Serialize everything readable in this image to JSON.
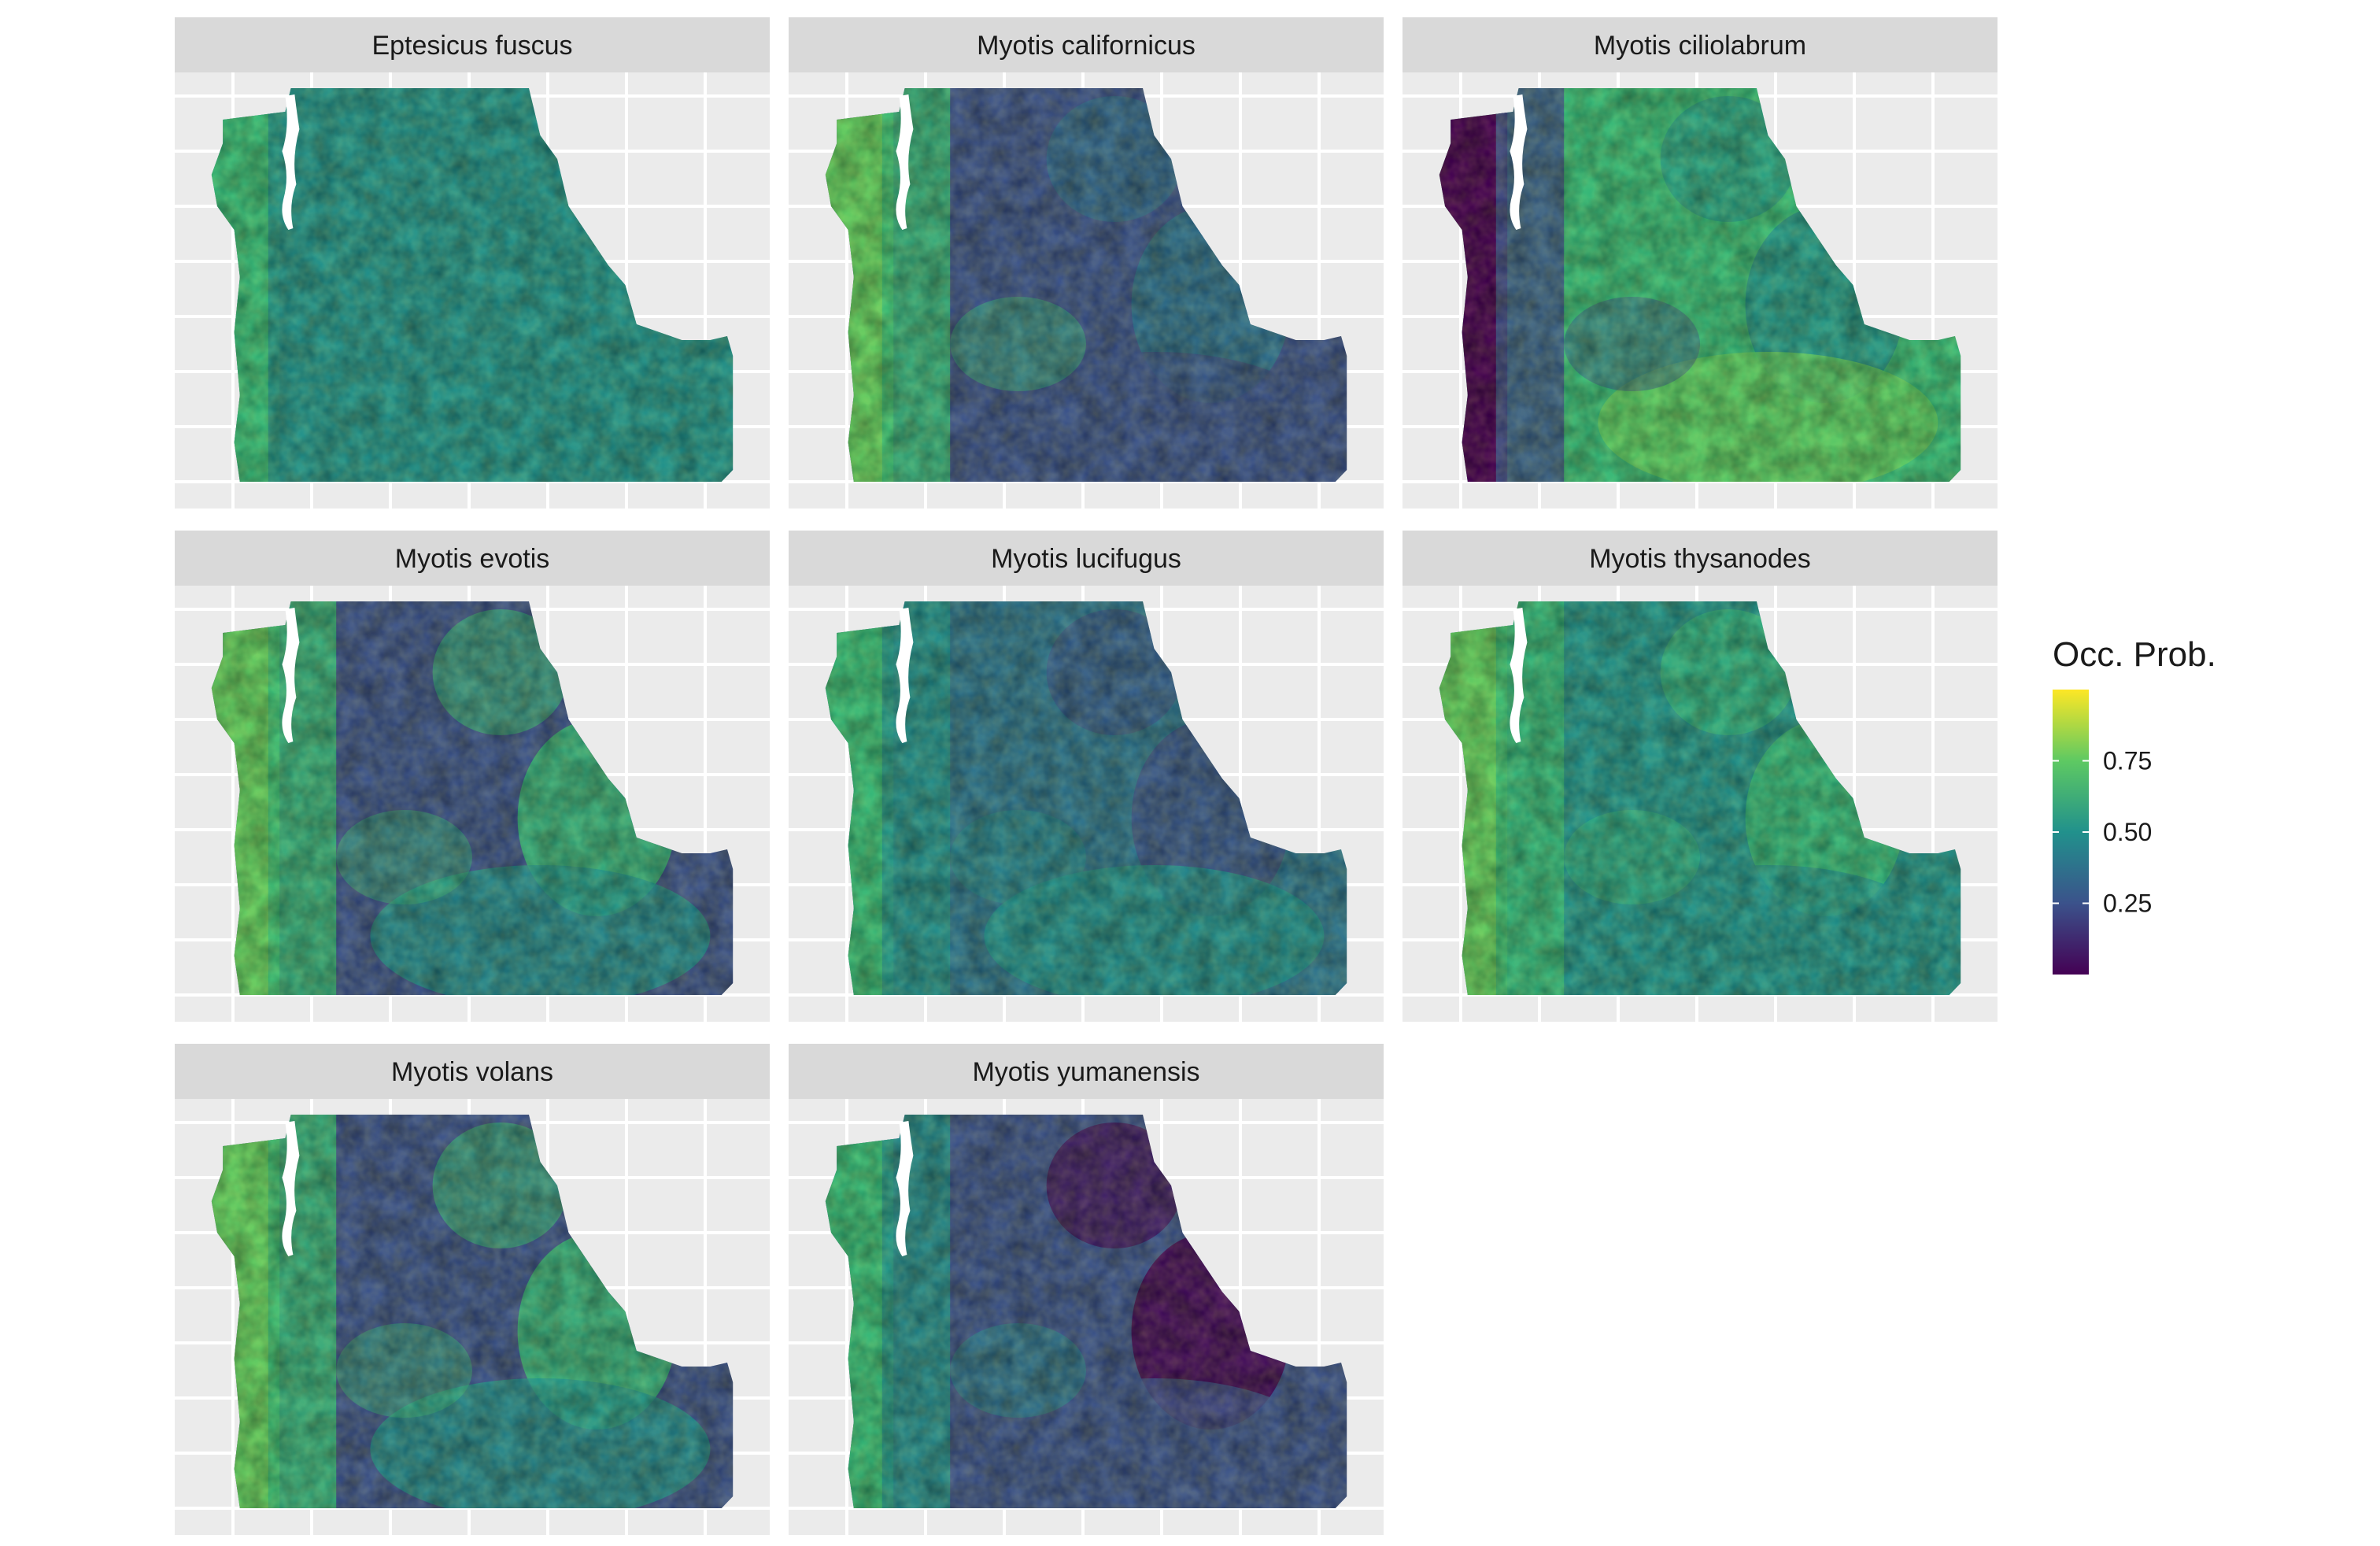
{
  "panels": [
    {
      "label": "Eptesicus fuscus",
      "pattern": "uniform-mid"
    },
    {
      "label": "Myotis californicus",
      "pattern": "west-high-east-low"
    },
    {
      "label": "Myotis ciliolabrum",
      "pattern": "west-low-east-high"
    },
    {
      "label": "Myotis evotis",
      "pattern": "mountain-high-basin-low"
    },
    {
      "label": "Myotis lucifugus",
      "pattern": "mixed-mid"
    },
    {
      "label": "Myotis thysanodes",
      "pattern": "mid-high"
    },
    {
      "label": "Myotis volans",
      "pattern": "mountain-high-basin-low"
    },
    {
      "label": "Myotis yumanensis",
      "pattern": "west-mid-east-low"
    }
  ],
  "legend": {
    "title": "Occ. Prob.",
    "ticks": [
      {
        "value": 0.75,
        "label": "0.75"
      },
      {
        "value": 0.5,
        "label": "0.50"
      },
      {
        "value": 0.25,
        "label": "0.25"
      }
    ],
    "range": [
      0.0,
      1.0
    ],
    "colormap": "viridis",
    "colors": [
      "#440154",
      "#3b528b",
      "#21918c",
      "#5ec962",
      "#fde725"
    ]
  },
  "colors": {
    "panel_background": "#ebebeb",
    "gridline": "#ffffff",
    "strip_background": "#d9d9d9",
    "strip_text": "#1a1a1a"
  }
}
